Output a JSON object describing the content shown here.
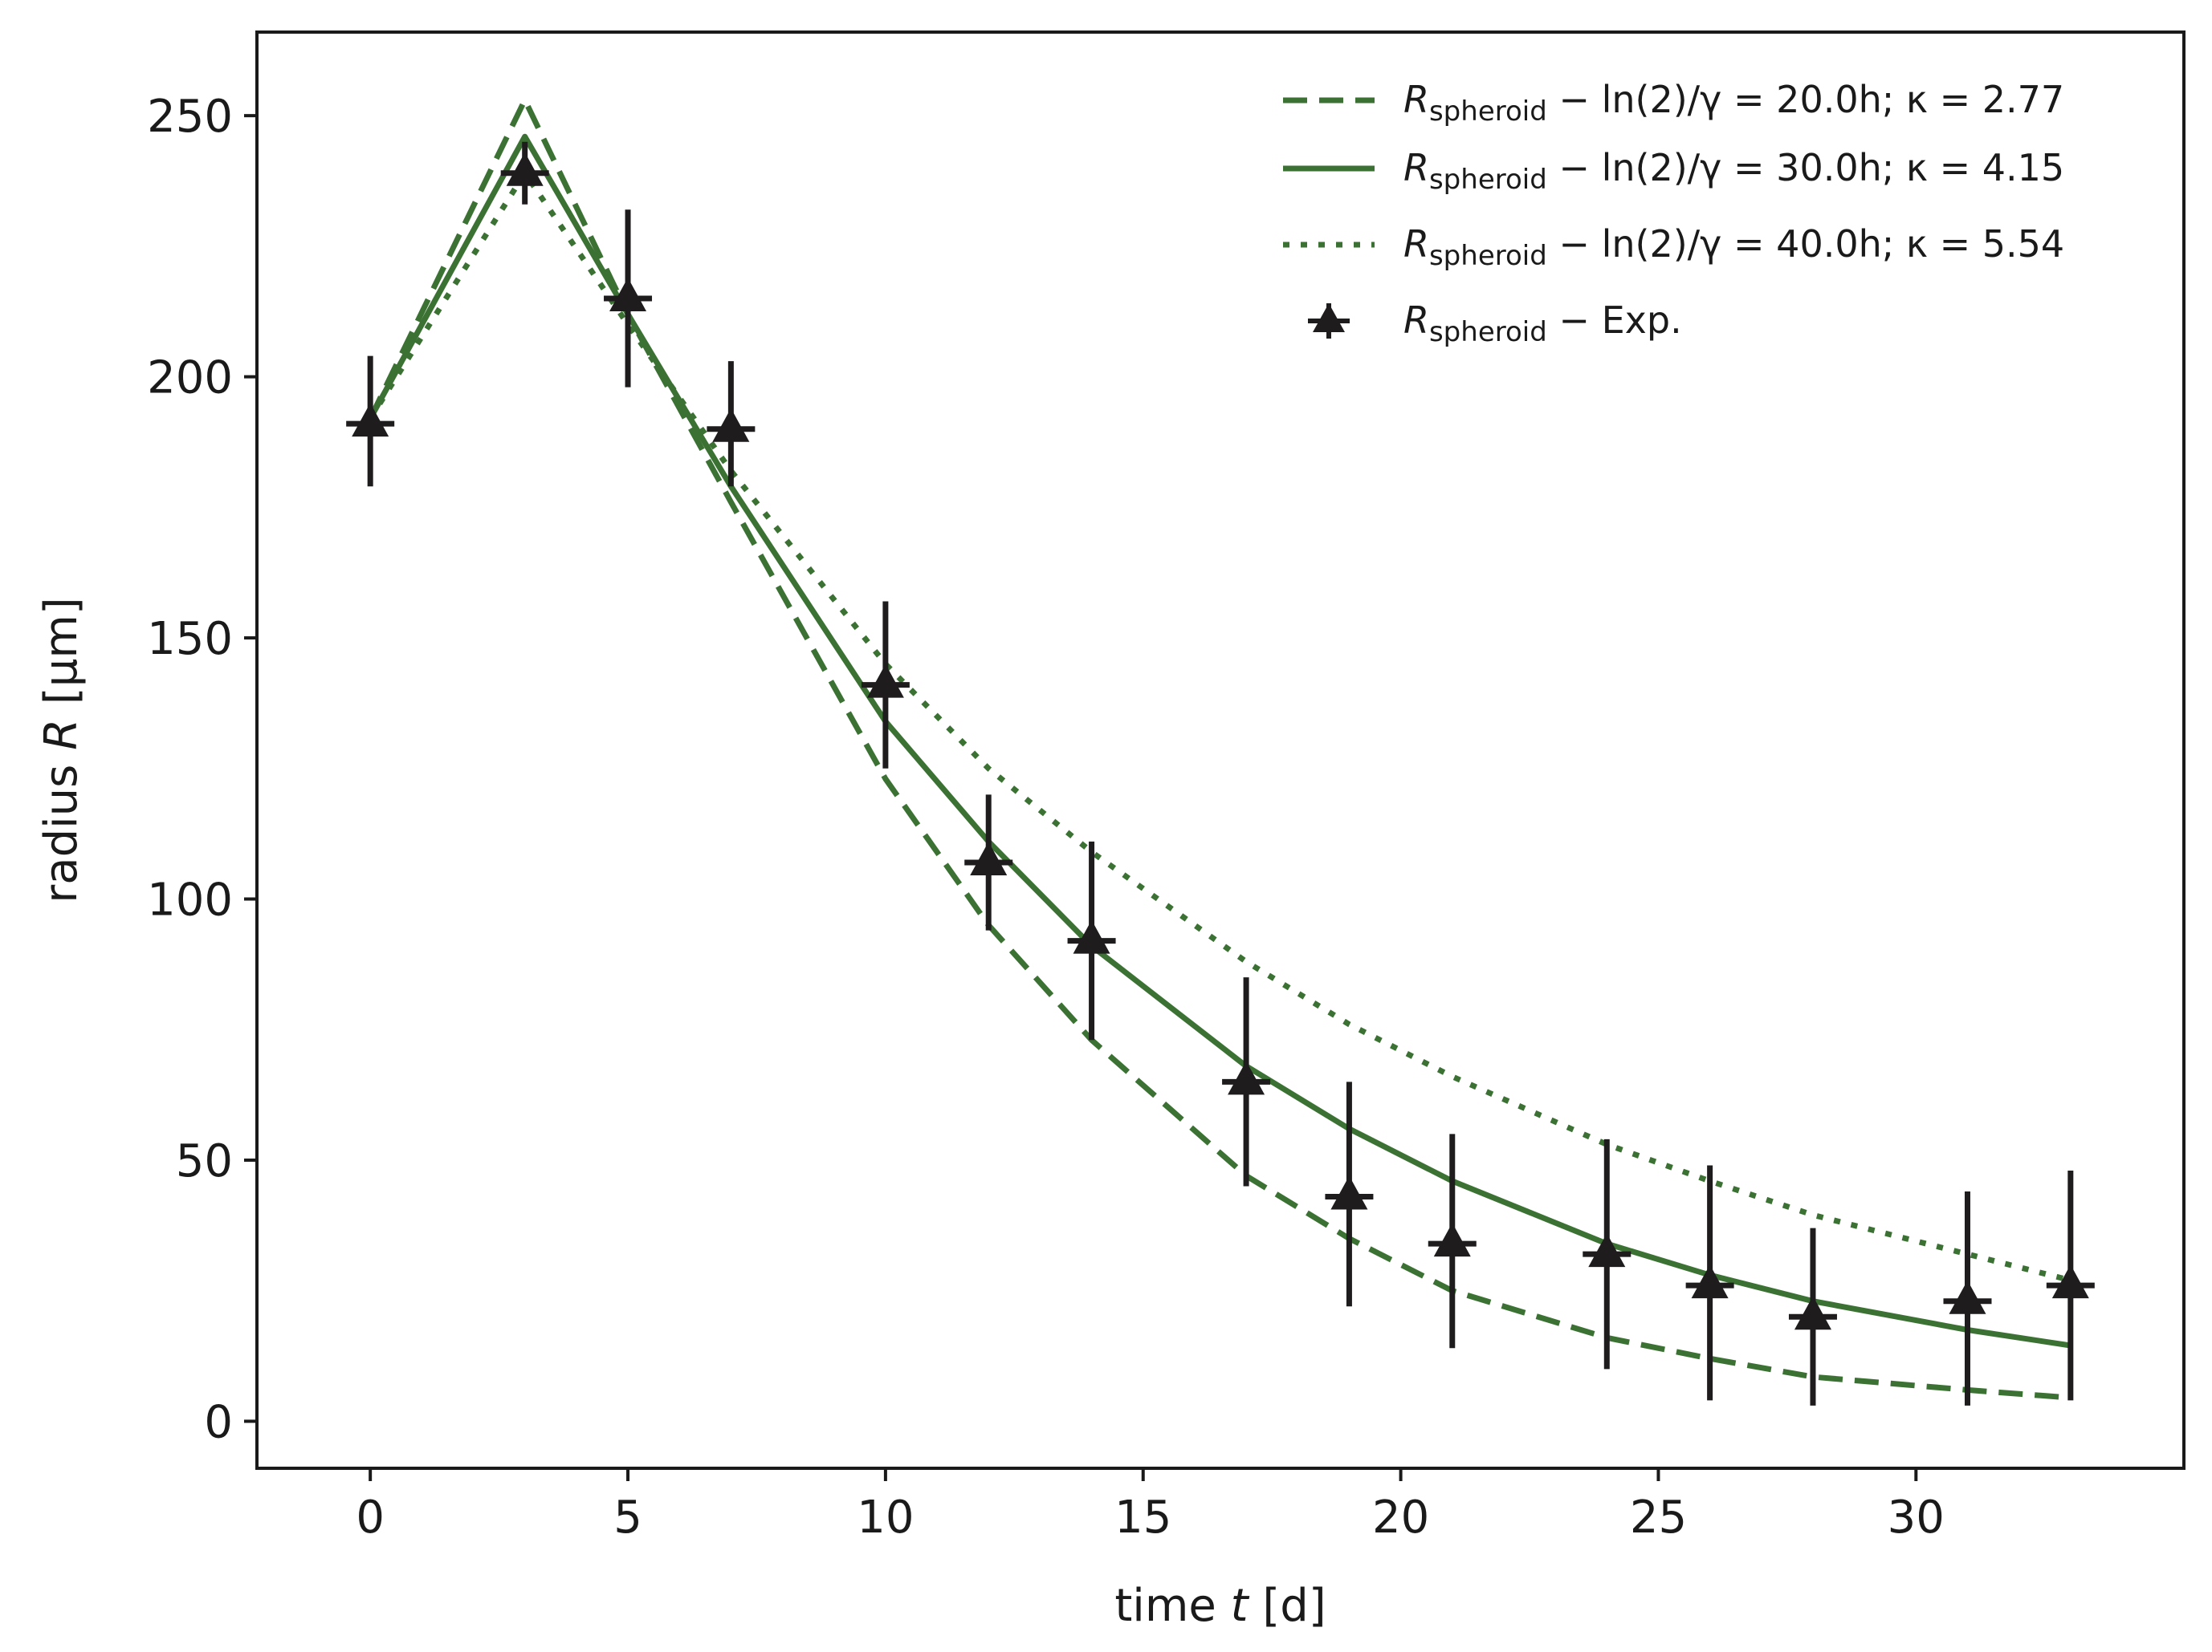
{
  "chart_data": {
    "type": "line",
    "title": "",
    "xlabel_prefix": "time ",
    "xlabel_var": "t",
    "xlabel_suffix": " [d]",
    "ylabel_prefix": "radius ",
    "ylabel_var": "R",
    "ylabel_suffix": " [μm]",
    "xlim": [
      -2.2,
      35.2
    ],
    "ylim": [
      -9,
      266
    ],
    "xticks": [
      0,
      5,
      10,
      15,
      20,
      25,
      30
    ],
    "yticks": [
      0,
      50,
      100,
      150,
      200,
      250
    ],
    "grid": false,
    "legend_position": "top-right",
    "colors": {
      "model": "#3b7233",
      "experiment": "#1f1c1d",
      "axis": "#1a1a1a"
    },
    "series": [
      {
        "name": "dashed",
        "style": "dashed",
        "legend": {
          "sym": "R",
          "sub": "spheroid",
          "rest": " − ln(2)/γ = 20.0h; κ = 2.77"
        },
        "x": [
          0,
          3,
          5,
          7,
          10,
          12,
          14,
          17,
          19,
          21,
          24,
          26,
          28,
          31,
          33
        ],
        "y": [
          192,
          253,
          212,
          176,
          123,
          95,
          73,
          47,
          35,
          25,
          16,
          12,
          8.5,
          6,
          4.5
        ]
      },
      {
        "name": "solid",
        "style": "solid",
        "legend": {
          "sym": "R",
          "sub": "spheroid",
          "rest": " − ln(2)/γ = 30.0h; κ = 4.15"
        },
        "x": [
          0,
          3,
          5,
          7,
          10,
          12,
          14,
          17,
          19,
          21,
          24,
          26,
          28,
          31,
          33
        ],
        "y": [
          192,
          246,
          212,
          179,
          134,
          111,
          91,
          68,
          56,
          46,
          34,
          28,
          23,
          17.5,
          14.5
        ]
      },
      {
        "name": "dotted",
        "style": "dotted",
        "legend": {
          "sym": "R",
          "sub": "spheroid",
          "rest": " − ln(2)/γ = 40.0h; κ = 5.54"
        },
        "x": [
          0,
          3,
          5,
          7,
          10,
          12,
          14,
          17,
          19,
          21,
          24,
          26,
          28,
          31,
          33
        ],
        "y": [
          192,
          239,
          210,
          182,
          145,
          125,
          109,
          88,
          76,
          66,
          53,
          46,
          39.5,
          32,
          27
        ]
      }
    ],
    "experiment": {
      "name": "experiment",
      "legend": {
        "sym": "R",
        "sub": "spheroid",
        "rest": " −  Exp."
      },
      "x": [
        0,
        3,
        5,
        7,
        10,
        12,
        14,
        17,
        19,
        21,
        24,
        26,
        28,
        31,
        33
      ],
      "y": [
        191,
        239,
        215,
        190,
        141,
        107,
        92,
        65,
        43,
        34,
        32,
        26,
        20,
        23,
        26
      ],
      "err_low": [
        12,
        6,
        17,
        11,
        16,
        13,
        19,
        20,
        21,
        20,
        22,
        22,
        17,
        20,
        22
      ],
      "err_high": [
        13,
        6,
        17,
        13,
        16,
        13,
        19,
        20,
        22,
        21,
        22,
        23,
        17,
        21,
        22
      ]
    }
  }
}
